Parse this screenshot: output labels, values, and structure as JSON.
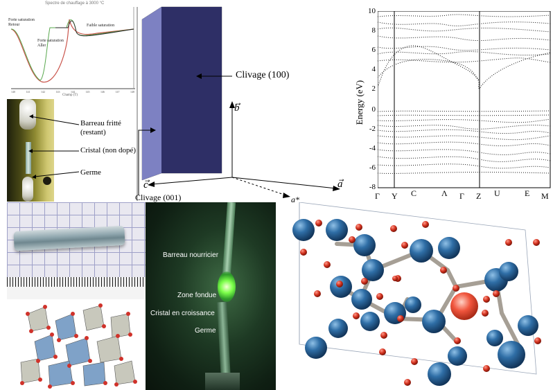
{
  "dsc": {
    "top_text": "Spectre de chauffage à 3000 °C",
    "forte_saturation_retour": "Forte saturation\nRetour",
    "faible_saturation": "Faible saturation",
    "forte_saturation_aller": "Forte saturation\nAller",
    "xlabel": "Champ (T)",
    "xticks": [
      "140",
      "141",
      "142",
      "143",
      "144",
      "145",
      "146",
      "147",
      "148"
    ]
  },
  "growth_photo": {
    "labels": [
      "Barreau fritté\n(restant)",
      "Cristal (non dopé)",
      "Germe"
    ]
  },
  "crystal_3d": {
    "face_label": "Clivage (100)",
    "bottom_label": "Clivage (001)",
    "axis_b": "b",
    "axis_a": "a",
    "axis_c": "c",
    "axis_astar": "a*"
  },
  "band_structure": {
    "ylabel": "Energy (eV)",
    "yticks": [
      "10",
      "8",
      "6",
      "4",
      "2",
      "0",
      "-2",
      "-4",
      "-6",
      "-8"
    ],
    "ylim": [
      -8,
      10
    ],
    "kpoints": [
      "Γ",
      "Y",
      "C",
      "Λ",
      "Γ",
      "Z",
      "U",
      "E",
      "M"
    ]
  },
  "furnace_photo": {
    "labels": [
      "Barreau nourricier",
      "Zone fondue",
      "Cristal en croissance",
      "Germe"
    ]
  }
}
